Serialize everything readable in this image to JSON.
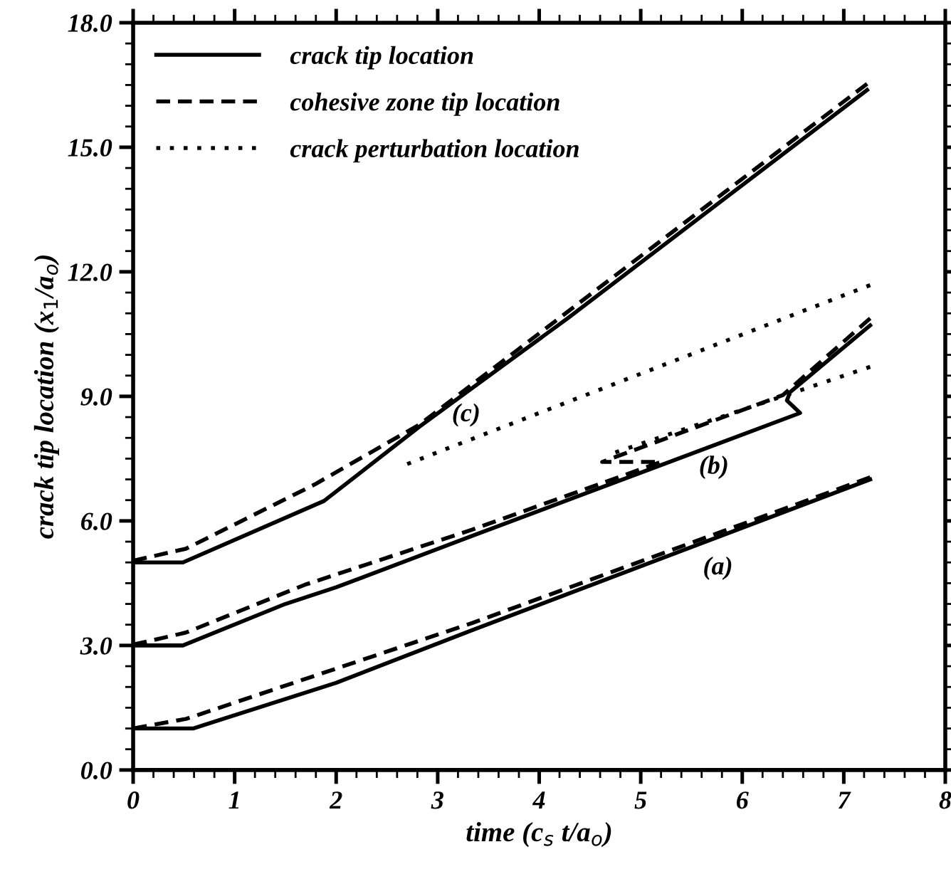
{
  "chart_data": {
    "type": "line",
    "xlabel": "time (c$_{s}$ t/a$_{o}$)",
    "ylabel": "crack tip location (x$_{1}$/a$_{o}$)",
    "xlim": [
      0,
      8
    ],
    "xticks": [
      0,
      1,
      2,
      3,
      4,
      5,
      6,
      7,
      8
    ],
    "ylim": [
      0,
      18
    ],
    "yticks": [
      {
        "value": 0,
        "label": "0.0"
      },
      {
        "value": 3,
        "label": "3.0"
      },
      {
        "value": 6,
        "label": "6.0"
      },
      {
        "value": 9,
        "label": "9.0"
      },
      {
        "value": 12,
        "label": "12.0"
      },
      {
        "value": 15,
        "label": "15.0"
      },
      {
        "value": 18,
        "label": "18.0"
      }
    ],
    "grid": false,
    "legend": "top left",
    "series": [
      {
        "name": "crack tip location",
        "color": "#000000",
        "line_style": "solid",
        "x": [
          0,
          0.49,
          1.88,
          2.82,
          4.28,
          7.23
        ],
        "values": [
          5.0,
          5.0,
          6.48,
          8.27,
          10.88,
          16.38
        ]
      },
      {
        "name": "cohesive zone tip location",
        "color": "#000000",
        "line_style": "dashed",
        "x": [
          0,
          0.52,
          1.79,
          2.82,
          7.23
        ],
        "values": [
          5.04,
          5.33,
          6.88,
          8.32,
          16.53
        ]
      },
      {
        "name": "crack perturbation location",
        "color": "#000000",
        "line_style": "dotted",
        "x": [
          2.7,
          7.26
        ],
        "values": [
          7.37,
          11.68
        ]
      },
      {
        "color": "#000000",
        "line_style": "solid",
        "x": [
          0,
          0.49,
          1.5,
          2.0,
          3.34,
          4.28,
          6.57,
          6.44,
          6.47,
          7.26
        ],
        "values": [
          3.0,
          3.0,
          4.0,
          4.4,
          5.64,
          6.5,
          8.6,
          8.9,
          9.1,
          10.71
        ]
      },
      {
        "color": "#000000",
        "line_style": "dashed",
        "x": [
          0,
          0.52,
          1.69,
          3.34,
          5.2,
          4.62,
          6.4,
          7.26
        ],
        "values": [
          3.02,
          3.31,
          4.46,
          5.79,
          7.42,
          7.42,
          9.03,
          10.88
        ]
      },
      {
        "color": "#000000",
        "line_style": "dotted",
        "x": [
          4.75,
          7.26
        ],
        "values": [
          7.65,
          9.71
        ]
      },
      {
        "color": "#000000",
        "line_style": "solid",
        "x": [
          0,
          0.59,
          2.0,
          3.34,
          7.26
        ],
        "values": [
          1.0,
          1.0,
          2.1,
          3.37,
          7.0
        ]
      },
      {
        "color": "#000000",
        "line_style": "dashed",
        "x": [
          0,
          0.52,
          3.34,
          7.26
        ],
        "values": [
          1.0,
          1.23,
          3.54,
          7.05
        ]
      }
    ],
    "annotations": [
      "(c)",
      "(b)",
      "(a)"
    ]
  }
}
